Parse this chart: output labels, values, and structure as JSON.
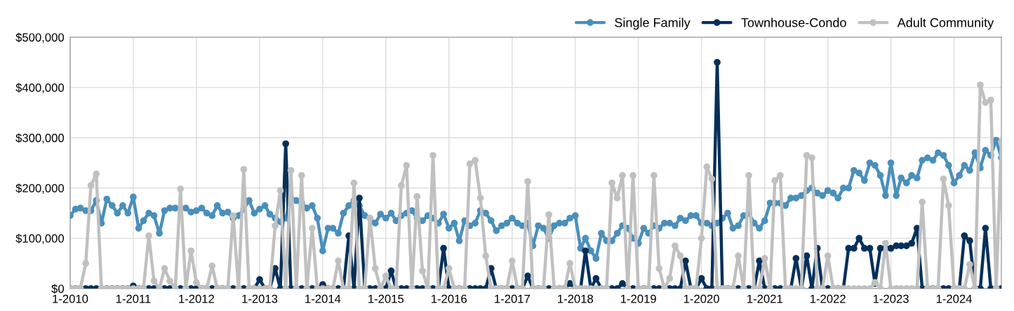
{
  "chart_data": {
    "type": "line",
    "x": [
      "2010-01",
      "2010-02",
      "2010-03",
      "2010-04",
      "2010-05",
      "2010-06",
      "2010-07",
      "2010-08",
      "2010-09",
      "2010-10",
      "2010-11",
      "2010-12",
      "2011-01",
      "2011-02",
      "2011-03",
      "2011-04",
      "2011-05",
      "2011-06",
      "2011-07",
      "2011-08",
      "2011-09",
      "2011-10",
      "2011-11",
      "2011-12",
      "2012-01",
      "2012-02",
      "2012-03",
      "2012-04",
      "2012-05",
      "2012-06",
      "2012-07",
      "2012-08",
      "2012-09",
      "2012-10",
      "2012-11",
      "2012-12",
      "2013-01",
      "2013-02",
      "2013-03",
      "2013-04",
      "2013-05",
      "2013-06",
      "2013-07",
      "2013-08",
      "2013-09",
      "2013-10",
      "2013-11",
      "2013-12",
      "2014-01",
      "2014-02",
      "2014-03",
      "2014-04",
      "2014-05",
      "2014-06",
      "2014-07",
      "2014-08",
      "2014-09",
      "2014-10",
      "2014-11",
      "2014-12",
      "2015-01",
      "2015-02",
      "2015-03",
      "2015-04",
      "2015-05",
      "2015-06",
      "2015-07",
      "2015-08",
      "2015-09",
      "2015-10",
      "2015-11",
      "2015-12",
      "2016-01",
      "2016-02",
      "2016-03",
      "2016-04",
      "2016-05",
      "2016-06",
      "2016-07",
      "2016-08",
      "2016-09",
      "2016-10",
      "2016-11",
      "2016-12",
      "2017-01",
      "2017-02",
      "2017-03",
      "2017-04",
      "2017-05",
      "2017-06",
      "2017-07",
      "2017-08",
      "2017-09",
      "2017-10",
      "2017-11",
      "2017-12",
      "2018-01",
      "2018-02",
      "2018-03",
      "2018-04",
      "2018-05",
      "2018-06",
      "2018-07",
      "2018-08",
      "2018-09",
      "2018-10",
      "2018-11",
      "2018-12",
      "2019-01",
      "2019-02",
      "2019-03",
      "2019-04",
      "2019-05",
      "2019-06",
      "2019-07",
      "2019-08",
      "2019-09",
      "2019-10",
      "2019-11",
      "2019-12",
      "2020-01",
      "2020-02",
      "2020-03",
      "2020-04",
      "2020-05",
      "2020-06",
      "2020-07",
      "2020-08",
      "2020-09",
      "2020-10",
      "2020-11",
      "2020-12",
      "2021-01",
      "2021-02",
      "2021-03",
      "2021-04",
      "2021-05",
      "2021-06",
      "2021-07",
      "2021-08",
      "2021-09",
      "2021-10",
      "2021-11",
      "2021-12",
      "2022-01",
      "2022-02",
      "2022-03",
      "2022-04",
      "2022-05",
      "2022-06",
      "2022-07",
      "2022-08",
      "2022-09",
      "2022-10",
      "2022-11",
      "2022-12",
      "2023-01",
      "2023-02",
      "2023-03",
      "2023-04",
      "2023-05",
      "2023-06",
      "2023-07",
      "2023-08",
      "2023-09",
      "2023-10",
      "2023-11",
      "2023-12",
      "2024-01",
      "2024-02",
      "2024-03",
      "2024-04",
      "2024-05",
      "2024-06",
      "2024-07",
      "2024-08",
      "2024-09",
      "2024-10"
    ],
    "series": [
      {
        "name": "Single Family",
        "color": "#4a8fbb",
        "values": [
          145000,
          158000,
          160000,
          155000,
          155000,
          175000,
          130000,
          178000,
          165000,
          150000,
          165000,
          150000,
          182000,
          120000,
          135000,
          150000,
          145000,
          110000,
          155000,
          160000,
          160000,
          160000,
          160000,
          152000,
          155000,
          160000,
          150000,
          145000,
          165000,
          150000,
          152000,
          140000,
          145000,
          158000,
          175000,
          150000,
          158000,
          165000,
          148000,
          140000,
          133000,
          140000,
          180000,
          175000,
          170000,
          160000,
          165000,
          140000,
          75000,
          120000,
          120000,
          110000,
          150000,
          165000,
          175000,
          165000,
          145000,
          140000,
          130000,
          148000,
          140000,
          150000,
          135000,
          145000,
          150000,
          155000,
          140000,
          135000,
          145000,
          140000,
          130000,
          148000,
          120000,
          130000,
          95000,
          135000,
          125000,
          130000,
          155000,
          150000,
          135000,
          115000,
          125000,
          130000,
          140000,
          130000,
          125000,
          130000,
          85000,
          125000,
          120000,
          100000,
          125000,
          130000,
          130000,
          140000,
          145000,
          80000,
          100000,
          75000,
          60000,
          110000,
          95000,
          95000,
          110000,
          125000,
          120000,
          100000,
          90000,
          120000,
          110000,
          125000,
          120000,
          130000,
          130000,
          125000,
          140000,
          135000,
          145000,
          145000,
          130000,
          130000,
          125000,
          130000,
          140000,
          150000,
          120000,
          125000,
          145000,
          150000,
          130000,
          120000,
          135000,
          170000,
          170000,
          170000,
          165000,
          180000,
          180000,
          185000,
          195000,
          200000,
          190000,
          185000,
          195000,
          190000,
          180000,
          200000,
          200000,
          235000,
          230000,
          215000,
          250000,
          245000,
          225000,
          185000,
          250000,
          185000,
          220000,
          210000,
          225000,
          220000,
          255000,
          260000,
          255000,
          270000,
          265000,
          245000,
          210000,
          225000,
          245000,
          235000,
          270000,
          240000,
          275000,
          265000,
          295000,
          260000
        ]
      },
      {
        "name": "Townhouse-Condo",
        "color": "#04305a",
        "values": [
          0,
          0,
          0,
          0,
          0,
          0,
          0,
          0,
          0,
          0,
          0,
          0,
          5000,
          0,
          0,
          0,
          0,
          0,
          0,
          0,
          0,
          0,
          0,
          0,
          0,
          0,
          0,
          0,
          0,
          0,
          0,
          0,
          0,
          0,
          0,
          0,
          18000,
          0,
          0,
          40000,
          0,
          288000,
          0,
          0,
          0,
          0,
          0,
          0,
          8000,
          0,
          0,
          0,
          0,
          105000,
          0,
          180000,
          0,
          0,
          0,
          0,
          0,
          35000,
          0,
          0,
          0,
          0,
          0,
          0,
          0,
          0,
          0,
          80000,
          0,
          0,
          0,
          0,
          0,
          0,
          0,
          0,
          40000,
          0,
          0,
          0,
          0,
          0,
          0,
          25000,
          0,
          0,
          0,
          0,
          0,
          0,
          0,
          10000,
          0,
          0,
          75000,
          0,
          20000,
          0,
          0,
          0,
          0,
          10000,
          0,
          0,
          0,
          0,
          0,
          0,
          0,
          0,
          0,
          0,
          0,
          55000,
          0,
          0,
          20000,
          0,
          0,
          450000,
          0,
          0,
          0,
          0,
          0,
          0,
          0,
          55000,
          0,
          0,
          0,
          0,
          0,
          0,
          60000,
          0,
          65000,
          0,
          80000,
          0,
          0,
          0,
          0,
          0,
          80000,
          80000,
          100000,
          80000,
          80000,
          10000,
          80000,
          80000,
          80000,
          85000,
          85000,
          85000,
          90000,
          120000,
          0,
          0,
          0,
          0,
          0,
          0,
          0,
          0,
          105000,
          95000,
          0,
          0,
          120000,
          0,
          0,
          0
        ]
      },
      {
        "name": "Adult Community",
        "color": "#c0c0c0",
        "values": [
          0,
          0,
          0,
          50000,
          205000,
          228000,
          0,
          0,
          0,
          0,
          0,
          0,
          0,
          0,
          0,
          105000,
          15000,
          0,
          40000,
          15000,
          0,
          198000,
          0,
          75000,
          12000,
          0,
          0,
          45000,
          0,
          0,
          0,
          145000,
          0,
          237000,
          0,
          0,
          0,
          0,
          0,
          125000,
          195000,
          0,
          235000,
          0,
          225000,
          0,
          120000,
          0,
          0,
          0,
          0,
          55000,
          0,
          0,
          210000,
          0,
          0,
          140000,
          40000,
          0,
          25000,
          0,
          0,
          205000,
          245000,
          0,
          183000,
          35000,
          0,
          265000,
          0,
          0,
          40000,
          0,
          0,
          0,
          248000,
          255000,
          180000,
          65000,
          0,
          0,
          0,
          0,
          55000,
          0,
          0,
          213000,
          0,
          0,
          0,
          147000,
          0,
          0,
          0,
          50000,
          0,
          0,
          0,
          0,
          0,
          0,
          0,
          210000,
          180000,
          225000,
          0,
          225000,
          0,
          0,
          0,
          225000,
          40000,
          0,
          20000,
          85000,
          65000,
          0,
          0,
          0,
          100000,
          242000,
          218000,
          0,
          0,
          0,
          0,
          65000,
          0,
          225000,
          0,
          0,
          60000,
          0,
          215000,
          225000,
          0,
          0,
          0,
          0,
          265000,
          260000,
          0,
          0,
          65000,
          0,
          0,
          0,
          0,
          0,
          0,
          0,
          0,
          12000,
          0,
          90000,
          0,
          0,
          0,
          0,
          0,
          0,
          172000,
          0,
          0,
          0,
          218000,
          165000,
          0,
          0,
          0,
          48000,
          0,
          405000,
          370000,
          375000,
          0,
          292000
        ]
      }
    ],
    "xlim": [
      "2010-01",
      "2024-10"
    ],
    "xticks": [
      {
        "value": "2010-01",
        "label": "1-2010"
      },
      {
        "value": "2011-01",
        "label": "1-2011"
      },
      {
        "value": "2012-01",
        "label": "1-2012"
      },
      {
        "value": "2013-01",
        "label": "1-2013"
      },
      {
        "value": "2014-01",
        "label": "1-2014"
      },
      {
        "value": "2015-01",
        "label": "1-2015"
      },
      {
        "value": "2016-01",
        "label": "1-2016"
      },
      {
        "value": "2017-01",
        "label": "1-2017"
      },
      {
        "value": "2018-01",
        "label": "1-2018"
      },
      {
        "value": "2019-01",
        "label": "1-2019"
      },
      {
        "value": "2020-01",
        "label": "1-2020"
      },
      {
        "value": "2021-01",
        "label": "1-2021"
      },
      {
        "value": "2022-01",
        "label": "1-2022"
      },
      {
        "value": "2023-01",
        "label": "1-2023"
      },
      {
        "value": "2024-01",
        "label": "1-2024"
      }
    ],
    "ylim": [
      0,
      500000
    ],
    "yticks": [
      {
        "value": 0,
        "label": "$0"
      },
      {
        "value": 100000,
        "label": "$100,000"
      },
      {
        "value": 200000,
        "label": "$200,000"
      },
      {
        "value": 300000,
        "label": "$300,000"
      },
      {
        "value": 400000,
        "label": "$400,000"
      },
      {
        "value": 500000,
        "label": "$500,000"
      }
    ],
    "grid": true,
    "legend": "top right",
    "marker": "circle",
    "line_style": "solid"
  }
}
